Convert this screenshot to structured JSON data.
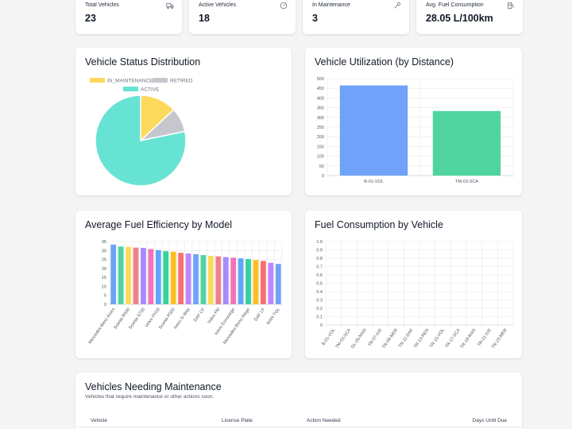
{
  "stats": [
    {
      "label": "Total Vehicles",
      "value": "23",
      "icon": "truck-icon"
    },
    {
      "label": "Active Vehicles",
      "value": "18",
      "icon": "gauge-icon"
    },
    {
      "label": "In Maintenance",
      "value": "3",
      "icon": "wrench-icon"
    },
    {
      "label": "Avg. Fuel Consumption",
      "value": "28.05 L/100km",
      "icon": "fuel-pump-icon"
    }
  ],
  "status_card": {
    "title": "Vehicle Status Distribution"
  },
  "utilization_card": {
    "title": "Vehicle Utilization (by Distance)"
  },
  "efficiency_card": {
    "title": "Average Fuel Efficiency by Model"
  },
  "consumption_card": {
    "title": "Fuel Consumption by Vehicle"
  },
  "maintenance": {
    "title": "Vehicles Needing Maintenance",
    "subtitle": "Vehicles that require maintenance or other actions soon.",
    "columns": [
      "Vehicle",
      "License Plate",
      "Action Needed",
      "Days Until Due"
    ]
  },
  "chart_data": [
    {
      "type": "pie",
      "title": "Vehicle Status Distribution",
      "legend": [
        "IN_MAINTENANCE",
        "RETIRED",
        "ACTIVE"
      ],
      "labels": [
        "IN_MAINTENANCE",
        "RETIRED",
        "ACTIVE"
      ],
      "values": [
        3,
        2,
        18
      ],
      "colors": [
        "#fcd95b",
        "#c5c7cc",
        "#67e3d3"
      ]
    },
    {
      "type": "bar",
      "title": "Vehicle Utilization (by Distance)",
      "categories": [
        "B-01-VOL",
        "TM-03-SCA"
      ],
      "values": [
        465,
        333
      ],
      "colors": [
        "#6fa2f8",
        "#4fd4a0"
      ],
      "ylim": [
        0,
        500
      ],
      "yticks": [
        0,
        50,
        100,
        150,
        200,
        250,
        300,
        350,
        400,
        450,
        500
      ]
    },
    {
      "type": "bar",
      "title": "Average Fuel Efficiency by Model",
      "categories": [
        "Mercedes-Benz Arocs",
        "",
        "Scania R500",
        "",
        "Scania S730",
        "",
        "Volvo FH16",
        "",
        "Scania P320",
        "",
        "Iveco S-Way",
        "",
        "DAF CF",
        "",
        "Volvo FM",
        "",
        "Iveco Eurocargo",
        "",
        "Mercedes-Benz Atego",
        "",
        "DAF LF",
        "",
        "MAN TGL"
      ],
      "values": [
        33.3,
        32.2,
        32.0,
        31.6,
        31.4,
        30.8,
        30.2,
        29.6,
        29.3,
        28.7,
        28.3,
        27.9,
        27.4,
        27.0,
        26.7,
        26.3,
        26.0,
        25.6,
        25.2,
        24.7,
        24.2,
        23.1,
        22.5
      ],
      "colors": [
        "#6fa2f8",
        "#4fd4a0",
        "#fcd95b",
        "#f0808a",
        "#a78bfa",
        "#f472b6",
        "#60a5fa",
        "#34d399",
        "#fbbf24",
        "#f87171",
        "#c084fc"
      ],
      "ylim": [
        0,
        35
      ],
      "yticks": [
        0,
        5,
        10,
        15,
        20,
        25,
        30,
        35
      ]
    },
    {
      "type": "bar",
      "title": "Fuel Consumption by Vehicle",
      "categories": [
        "B-01-VOL",
        "TM-03-SCA",
        "GL-05-MAN",
        "TR-07-IVE",
        "TR-09-MER",
        "TR-11-DAF",
        "TR-13-REN",
        "TR-15-VOL",
        "TR-17-SCA",
        "TR-19-MAN",
        "TR-21-IVE",
        "TR-23-MER"
      ],
      "values": [
        0,
        0,
        0,
        0,
        0,
        0,
        0,
        0,
        0,
        0,
        0,
        0
      ],
      "ylim": [
        0,
        1
      ],
      "yticks": [
        "0",
        "0.1",
        "0.2",
        "0.3",
        "0.4",
        "0.5",
        "0.6",
        "0.7",
        "0.8",
        "0.9",
        "1.0"
      ]
    }
  ]
}
